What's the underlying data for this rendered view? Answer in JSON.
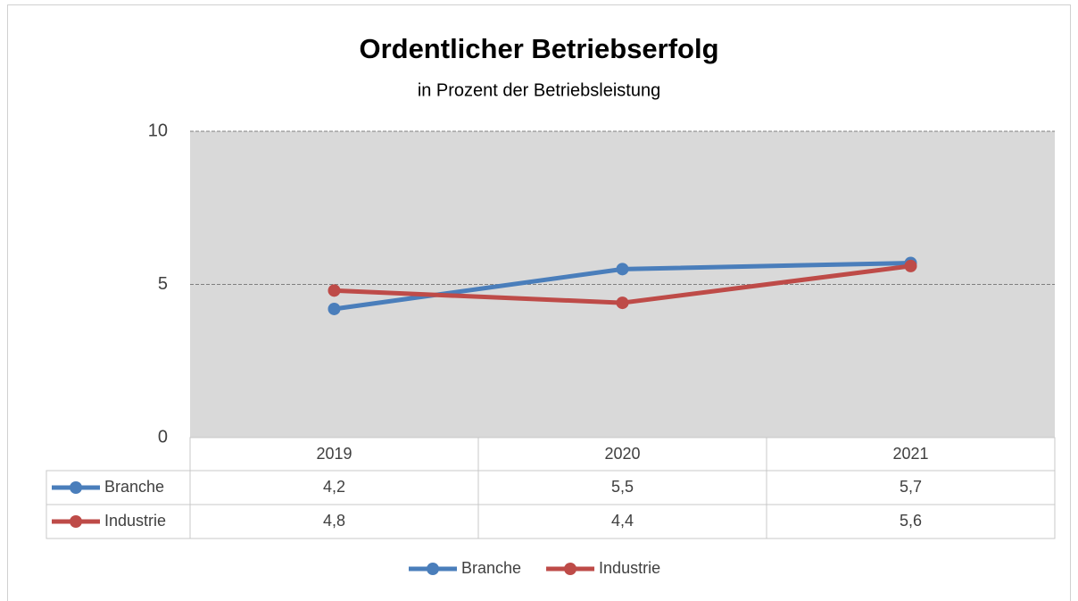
{
  "chart_data": {
    "type": "line",
    "title": "Ordentlicher Betriebserfolg",
    "subtitle": "in Prozent der Betriebsleistung",
    "categories": [
      "2019",
      "2020",
      "2021"
    ],
    "series": [
      {
        "name": "Branche",
        "color": "#4a7ebb",
        "values": [
          4.2,
          5.5,
          5.7
        ],
        "value_labels": [
          "4,2",
          "5,5",
          "5,7"
        ]
      },
      {
        "name": "Industrie",
        "color": "#be4b48",
        "values": [
          4.8,
          4.4,
          5.6
        ],
        "value_labels": [
          "4,8",
          "4,4",
          "5,6"
        ]
      }
    ],
    "ylim": [
      0,
      10
    ],
    "yticks": [
      0,
      5,
      10
    ],
    "grid": true,
    "legend": "bottom",
    "data_table": true
  }
}
